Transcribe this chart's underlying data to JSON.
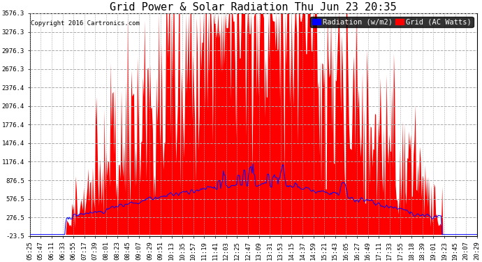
{
  "title": "Grid Power & Solar Radiation Thu Jun 23 20:35",
  "copyright": "Copyright 2016 Cartronics.com",
  "legend_radiation": "Radiation (w/m2)",
  "legend_grid": "Grid (AC Watts)",
  "background_color": "#ffffff",
  "plot_bg_color": "#ffffff",
  "yticks": [
    -23.5,
    276.5,
    576.5,
    876.5,
    1176.4,
    1476.4,
    1776.4,
    2076.4,
    2376.4,
    2676.3,
    2976.3,
    3276.3,
    3576.3
  ],
  "ytick_labels": [
    "-23.5",
    "276.5",
    "576.5",
    "876.5",
    "1176.4",
    "1476.4",
    "1776.4",
    "2076.4",
    "2376.4",
    "2676.3",
    "2976.3",
    "3276.3",
    "3576.3"
  ],
  "ymin": -23.5,
  "ymax": 3576.3,
  "grid_color": "#aaaaaa",
  "red_color": "#ff0000",
  "blue_color": "#0000ff",
  "title_color": "black",
  "title_fontsize": 11,
  "axis_label_fontsize": 6.5,
  "copyright_fontsize": 6.5,
  "legend_fontsize": 7.5,
  "xtick_labels": [
    "05:25",
    "05:47",
    "06:11",
    "06:33",
    "06:55",
    "07:17",
    "07:39",
    "08:01",
    "08:23",
    "08:45",
    "09:07",
    "09:29",
    "09:51",
    "10:13",
    "10:35",
    "10:57",
    "11:19",
    "11:41",
    "12:03",
    "12:25",
    "12:47",
    "13:09",
    "13:31",
    "13:53",
    "14:15",
    "14:37",
    "14:59",
    "15:21",
    "15:43",
    "16:05",
    "16:27",
    "16:49",
    "17:11",
    "17:33",
    "17:55",
    "18:18",
    "18:39",
    "19:01",
    "19:23",
    "19:45",
    "20:07",
    "20:29"
  ]
}
